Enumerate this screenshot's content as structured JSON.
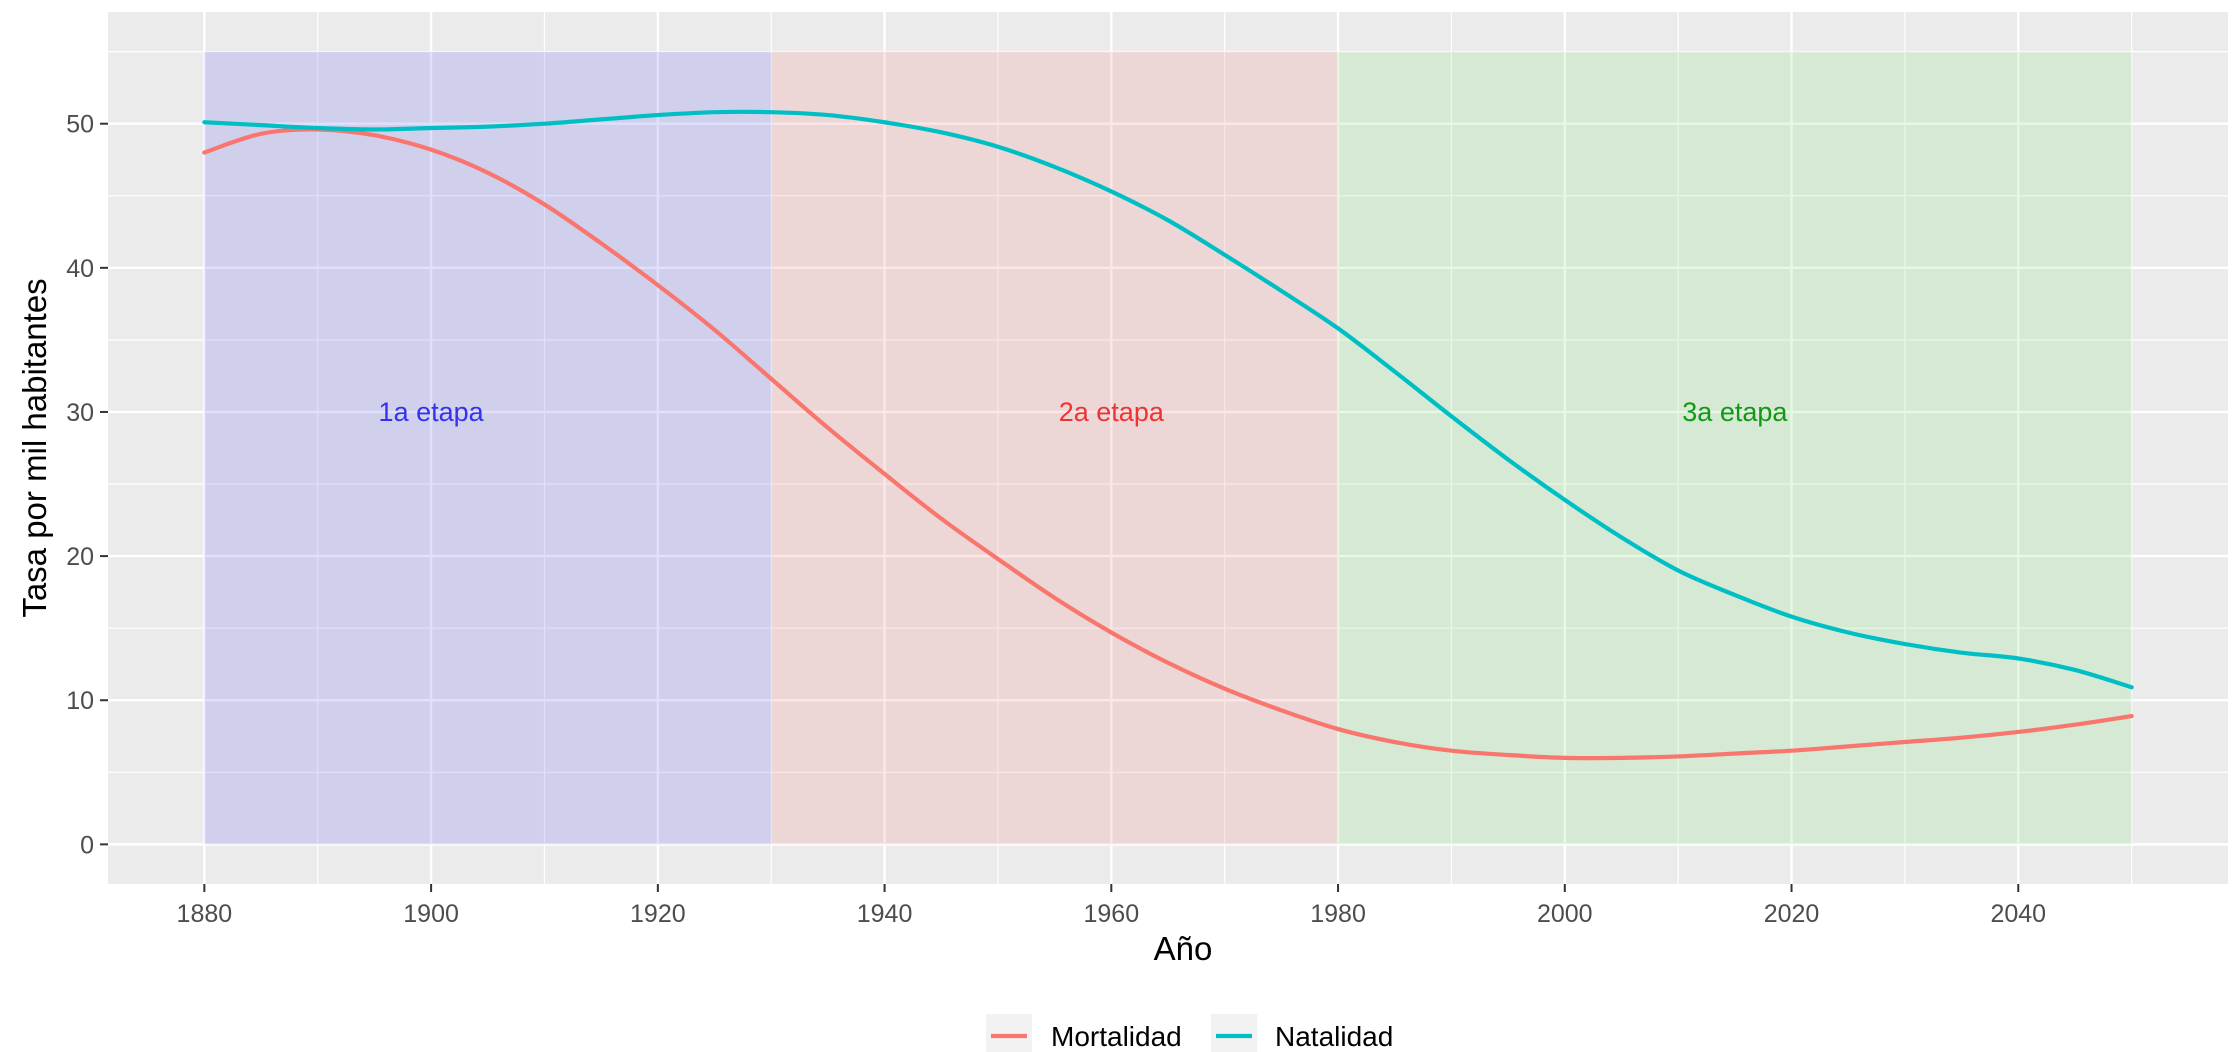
{
  "chart_data": {
    "type": "line",
    "title": "",
    "xlabel": "Año",
    "ylabel": "Tasa por mil habitantes",
    "xlim": [
      1871.5,
      2058.5
    ],
    "ylim": [
      -2.75,
      57.75
    ],
    "x_ticks": [
      1880,
      1900,
      1920,
      1940,
      1960,
      1980,
      2000,
      2020,
      2040
    ],
    "y_ticks": [
      0,
      10,
      20,
      30,
      40,
      50
    ],
    "grid": true,
    "legend_position": "bottom",
    "stages": [
      {
        "label": "1a etapa",
        "x_start": 1880,
        "x_end": 1930,
        "y_min": 0,
        "y_max": 55,
        "fill": "#6666ee",
        "label_color": "#3333ee",
        "label_x": 1900,
        "label_y": 30
      },
      {
        "label": "2a etapa",
        "x_start": 1930,
        "x_end": 1980,
        "y_min": 0,
        "y_max": 55,
        "fill": "#f08080",
        "label_color": "#ee3333",
        "label_x": 1960,
        "label_y": 30
      },
      {
        "label": "3a etapa",
        "x_start": 1980,
        "x_end": 2050,
        "y_min": 0,
        "y_max": 55,
        "fill": "#7fe07f",
        "label_color": "#119911",
        "label_x": 2015,
        "label_y": 30
      }
    ],
    "series": [
      {
        "name": "Mortalidad",
        "color": "#F8766D",
        "x": [
          1880,
          1885,
          1890,
          1895,
          1900,
          1905,
          1910,
          1915,
          1920,
          1925,
          1930,
          1935,
          1940,
          1945,
          1950,
          1955,
          1960,
          1965,
          1970,
          1975,
          1980,
          1985,
          1990,
          1995,
          2000,
          2005,
          2010,
          2015,
          2020,
          2025,
          2030,
          2035,
          2040,
          2045,
          2050
        ],
        "y": [
          48.0,
          49.3,
          49.6,
          49.2,
          48.2,
          46.6,
          44.4,
          41.7,
          38.8,
          35.7,
          32.3,
          28.9,
          25.7,
          22.6,
          19.8,
          17.1,
          14.7,
          12.6,
          10.8,
          9.3,
          8.0,
          7.1,
          6.5,
          6.2,
          6.0,
          6.0,
          6.1,
          6.3,
          6.5,
          6.8,
          7.1,
          7.4,
          7.8,
          8.3,
          8.9
        ]
      },
      {
        "name": "Natalidad",
        "color": "#00BFC4",
        "x": [
          1880,
          1885,
          1890,
          1895,
          1900,
          1905,
          1910,
          1915,
          1920,
          1925,
          1930,
          1935,
          1940,
          1945,
          1950,
          1955,
          1960,
          1965,
          1970,
          1975,
          1980,
          1985,
          1990,
          1995,
          2000,
          2005,
          2010,
          2015,
          2020,
          2025,
          2030,
          2035,
          2040,
          2045,
          2050
        ],
        "y": [
          50.1,
          49.9,
          49.7,
          49.6,
          49.7,
          49.8,
          50.0,
          50.3,
          50.6,
          50.8,
          50.8,
          50.6,
          50.1,
          49.4,
          48.4,
          47.0,
          45.3,
          43.3,
          40.9,
          38.4,
          35.8,
          32.8,
          29.7,
          26.7,
          23.9,
          21.3,
          19.0,
          17.3,
          15.8,
          14.7,
          13.9,
          13.3,
          12.9,
          12.1,
          10.9
        ]
      }
    ]
  }
}
